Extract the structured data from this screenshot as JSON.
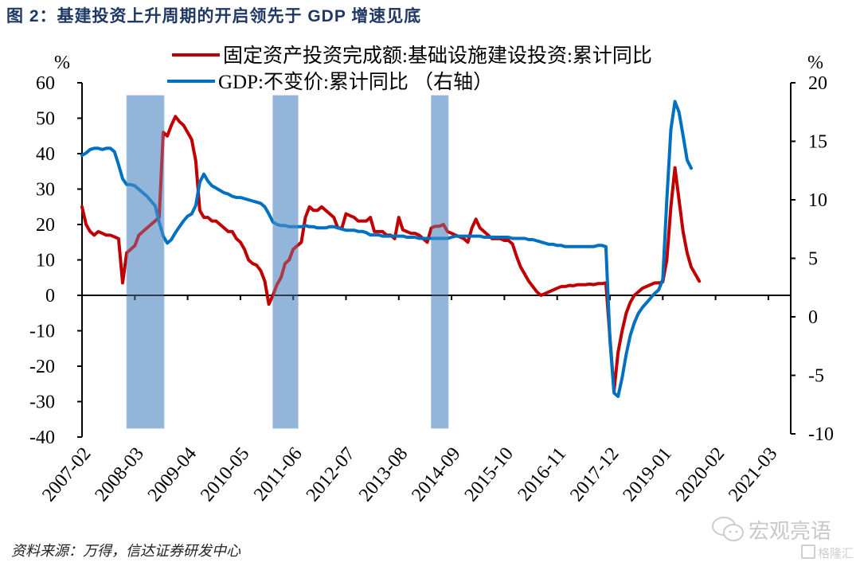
{
  "title": "图 2：基建投资上升周期的开启领先于 GDP 增速见底",
  "source": "资料来源：万得，信达证券研发中心",
  "watermark": {
    "text": "宏观亮语",
    "sub": "格隆汇"
  },
  "colors": {
    "title": "#1f3864",
    "infra": "#c00000",
    "gdp": "#0070c0",
    "shade": "#7fa7d2"
  },
  "chart_data": {
    "type": "line",
    "title": "基建投资上升周期的开启领先于 GDP 增速见底",
    "x_unit": "months since 2007-02",
    "x_tick_labels": [
      "2007-02",
      "2008-03",
      "2009-04",
      "2010-05",
      "2011-06",
      "2012-07",
      "2013-08",
      "2014-09",
      "2015-10",
      "2016-11",
      "2017-12",
      "2019-01",
      "2020-02",
      "2021-03"
    ],
    "x_tick_step": 13,
    "xlim": [
      0,
      172
    ],
    "left_axis": {
      "label": "%",
      "ylim": [
        -40,
        60
      ],
      "ticks": [
        60,
        50,
        40,
        30,
        20,
        10,
        0,
        -10,
        -20,
        -30,
        -40
      ]
    },
    "right_axis": {
      "label": "%",
      "ylim": [
        -10,
        20
      ],
      "ticks": [
        20,
        15,
        10,
        5,
        0,
        -5,
        -10
      ]
    },
    "legend": {
      "position": "top",
      "entries": [
        "固定资产投资完成额:基础设施建设投资:累计同比",
        "GDP:不变价:累计同比 （右轴）"
      ]
    },
    "shaded_periods": [
      {
        "start": 11,
        "end": 20
      },
      {
        "start": 47,
        "end": 53
      },
      {
        "start": 86,
        "end": 90
      }
    ],
    "series": [
      {
        "name": "固定资产投资完成额:基础设施建设投资:累计同比",
        "axis": "left",
        "points": [
          [
            0,
            25
          ],
          [
            1,
            20
          ],
          [
            2,
            18
          ],
          [
            3,
            17
          ],
          [
            4,
            18
          ],
          [
            5,
            17.5
          ],
          [
            6,
            17
          ],
          [
            7,
            17
          ],
          [
            8,
            16.5
          ],
          [
            9,
            16
          ],
          [
            10,
            3.5
          ],
          [
            11,
            12
          ],
          [
            12,
            13
          ],
          [
            13,
            14
          ],
          [
            14,
            17
          ],
          [
            15,
            18
          ],
          [
            16,
            19
          ],
          [
            17,
            20
          ],
          [
            18,
            21
          ],
          [
            19,
            22
          ],
          [
            20,
            46
          ],
          [
            21,
            45
          ],
          [
            22,
            48
          ],
          [
            23,
            50.5
          ],
          [
            24,
            49
          ],
          [
            25,
            48
          ],
          [
            26,
            46
          ],
          [
            27,
            44
          ],
          [
            28,
            38
          ],
          [
            29,
            24
          ],
          [
            30,
            22
          ],
          [
            31,
            22
          ],
          [
            32,
            21
          ],
          [
            33,
            21
          ],
          [
            34,
            20
          ],
          [
            35,
            19
          ],
          [
            36,
            18
          ],
          [
            37,
            18
          ],
          [
            38,
            16
          ],
          [
            39,
            15
          ],
          [
            40,
            13
          ],
          [
            41,
            10
          ],
          [
            42,
            9
          ],
          [
            43,
            8.5
          ],
          [
            44,
            7
          ],
          [
            45,
            4
          ],
          [
            46,
            -2.5
          ],
          [
            47,
            0
          ],
          [
            48,
            3
          ],
          [
            49,
            5
          ],
          [
            50,
            9
          ],
          [
            51,
            10
          ],
          [
            52,
            13
          ],
          [
            53,
            14
          ],
          [
            54,
            15
          ],
          [
            55,
            22
          ],
          [
            56,
            25
          ],
          [
            57,
            24
          ],
          [
            58,
            24
          ],
          [
            59,
            25
          ],
          [
            60,
            24
          ],
          [
            61,
            23
          ],
          [
            62,
            22
          ],
          [
            63,
            19
          ],
          [
            64,
            19
          ],
          [
            65,
            23
          ],
          [
            66,
            22.5
          ],
          [
            67,
            22
          ],
          [
            68,
            21
          ],
          [
            69,
            21
          ],
          [
            70,
            21
          ],
          [
            71,
            22
          ],
          [
            72,
            18
          ],
          [
            73,
            18
          ],
          [
            74,
            18
          ],
          [
            75,
            17
          ],
          [
            76,
            17
          ],
          [
            77,
            16
          ],
          [
            78,
            22
          ],
          [
            79,
            18.5
          ],
          [
            80,
            18
          ],
          [
            81,
            17.5
          ],
          [
            82,
            17.5
          ],
          [
            83,
            17
          ],
          [
            84,
            16
          ],
          [
            85,
            15
          ],
          [
            86,
            19
          ],
          [
            87,
            19.5
          ],
          [
            88,
            19.5
          ],
          [
            89,
            20
          ],
          [
            90,
            18
          ],
          [
            91,
            17.5
          ],
          [
            92,
            17
          ],
          [
            93,
            16.5
          ],
          [
            94,
            16
          ],
          [
            95,
            15
          ],
          [
            96,
            19
          ],
          [
            97,
            21.5
          ],
          [
            98,
            19
          ],
          [
            99,
            18
          ],
          [
            100,
            17
          ],
          [
            101,
            16
          ],
          [
            102,
            16
          ],
          [
            103,
            16
          ],
          [
            104,
            15.5
          ],
          [
            105,
            15.5
          ],
          [
            106,
            14.5
          ],
          [
            107,
            11
          ],
          [
            108,
            8
          ],
          [
            109,
            6
          ],
          [
            110,
            4
          ],
          [
            111,
            2.5
          ],
          [
            112,
            1
          ],
          [
            113,
            0
          ],
          [
            114,
            0.5
          ],
          [
            115,
            1
          ],
          [
            116,
            1.5
          ],
          [
            117,
            2
          ],
          [
            118,
            2.5
          ],
          [
            119,
            2.5
          ],
          [
            120,
            2.8
          ],
          [
            121,
            2.7
          ],
          [
            122,
            3
          ],
          [
            123,
            3
          ],
          [
            124,
            3
          ],
          [
            125,
            3.2
          ],
          [
            126,
            3
          ],
          [
            127,
            3.3
          ],
          [
            128,
            3.3
          ],
          [
            129,
            3.5
          ],
          [
            130,
            -12
          ],
          [
            131,
            -27
          ],
          [
            132,
            -16
          ],
          [
            133,
            -10
          ],
          [
            134,
            -5
          ],
          [
            135,
            -2
          ],
          [
            136,
            0
          ],
          [
            137,
            1
          ],
          [
            138,
            2
          ],
          [
            139,
            2.5
          ],
          [
            140,
            3
          ],
          [
            141,
            3.5
          ],
          [
            142,
            3.5
          ],
          [
            143,
            3.8
          ],
          [
            144,
            10
          ],
          [
            145,
            25
          ],
          [
            146,
            36
          ],
          [
            147,
            27
          ],
          [
            148,
            18
          ],
          [
            149,
            12
          ],
          [
            150,
            8
          ],
          [
            151,
            6
          ],
          [
            152,
            4
          ]
        ]
      },
      {
        "name": "GDP:不变价:累计同比 （右轴）",
        "axis": "right",
        "points": [
          [
            0,
            13.8
          ],
          [
            1,
            14
          ],
          [
            2,
            14.3
          ],
          [
            3,
            14.4
          ],
          [
            4,
            14.4
          ],
          [
            5,
            14.3
          ],
          [
            6,
            14.4
          ],
          [
            7,
            14.4
          ],
          [
            8,
            14.1
          ],
          [
            9,
            13
          ],
          [
            10,
            11.8
          ],
          [
            11,
            11.3
          ],
          [
            12,
            11.3
          ],
          [
            13,
            11.2
          ],
          [
            14,
            10.9
          ],
          [
            15,
            10.6
          ],
          [
            16,
            10.3
          ],
          [
            17,
            9.9
          ],
          [
            18,
            9.5
          ],
          [
            19,
            8.1
          ],
          [
            20,
            6.9
          ],
          [
            21,
            6.3
          ],
          [
            22,
            6.6
          ],
          [
            23,
            7.2
          ],
          [
            24,
            7.7
          ],
          [
            25,
            8.2
          ],
          [
            26,
            8.6
          ],
          [
            27,
            8.8
          ],
          [
            28,
            9.5
          ],
          [
            29,
            11.5
          ],
          [
            30,
            12.2
          ],
          [
            31,
            11.6
          ],
          [
            32,
            11.2
          ],
          [
            33,
            11
          ],
          [
            34,
            10.8
          ],
          [
            35,
            10.6
          ],
          [
            36,
            10.5
          ],
          [
            37,
            10.3
          ],
          [
            38,
            10.2
          ],
          [
            39,
            10.2
          ],
          [
            40,
            10.1
          ],
          [
            41,
            10
          ],
          [
            42,
            9.9
          ],
          [
            43,
            9.8
          ],
          [
            44,
            9.7
          ],
          [
            45,
            9.4
          ],
          [
            46,
            8.8
          ],
          [
            47,
            8.1
          ],
          [
            48,
            7.9
          ],
          [
            49,
            7.8
          ],
          [
            50,
            7.8
          ],
          [
            51,
            7.7
          ],
          [
            52,
            7.7
          ],
          [
            53,
            7.7
          ],
          [
            54,
            7.7
          ],
          [
            55,
            7.8
          ],
          [
            56,
            7.7
          ],
          [
            57,
            7.7
          ],
          [
            58,
            7.6
          ],
          [
            59,
            7.6
          ],
          [
            60,
            7.6
          ],
          [
            61,
            7.7
          ],
          [
            62,
            7.7
          ],
          [
            63,
            7.6
          ],
          [
            64,
            7.5
          ],
          [
            65,
            7.4
          ],
          [
            66,
            7.4
          ],
          [
            67,
            7.4
          ],
          [
            68,
            7.3
          ],
          [
            69,
            7.3
          ],
          [
            70,
            7.2
          ],
          [
            71,
            7
          ],
          [
            72,
            7
          ],
          [
            73,
            7
          ],
          [
            74,
            6.9
          ],
          [
            75,
            6.9
          ],
          [
            76,
            6.9
          ],
          [
            77,
            6.9
          ],
          [
            78,
            6.9
          ],
          [
            79,
            6.9
          ],
          [
            80,
            6.8
          ],
          [
            81,
            6.8
          ],
          [
            82,
            6.8
          ],
          [
            83,
            6.7
          ],
          [
            84,
            6.7
          ],
          [
            85,
            6.7
          ],
          [
            86,
            6.7
          ],
          [
            87,
            6.7
          ],
          [
            88,
            6.7
          ],
          [
            89,
            6.7
          ],
          [
            90,
            6.7
          ],
          [
            91,
            6.8
          ],
          [
            92,
            6.9
          ],
          [
            93,
            6.9
          ],
          [
            94,
            6.9
          ],
          [
            95,
            6.9
          ],
          [
            96,
            6.9
          ],
          [
            97,
            6.9
          ],
          [
            98,
            6.9
          ],
          [
            99,
            6.8
          ],
          [
            100,
            6.8
          ],
          [
            101,
            6.8
          ],
          [
            102,
            6.8
          ],
          [
            103,
            6.8
          ],
          [
            104,
            6.8
          ],
          [
            105,
            6.8
          ],
          [
            106,
            6.7
          ],
          [
            107,
            6.7
          ],
          [
            108,
            6.7
          ],
          [
            109,
            6.7
          ],
          [
            110,
            6.6
          ],
          [
            111,
            6.6
          ],
          [
            112,
            6.5
          ],
          [
            113,
            6.4
          ],
          [
            114,
            6.3
          ],
          [
            115,
            6.2
          ],
          [
            116,
            6.2
          ],
          [
            117,
            6.1
          ],
          [
            118,
            6.1
          ],
          [
            119,
            6.0
          ],
          [
            120,
            6.0
          ],
          [
            121,
            6.0
          ],
          [
            122,
            6.0
          ],
          [
            123,
            6.0
          ],
          [
            124,
            6.0
          ],
          [
            125,
            6.0
          ],
          [
            126,
            6.0
          ],
          [
            127,
            6.1
          ],
          [
            128,
            6.1
          ],
          [
            129,
            6.0
          ],
          [
            130,
            -2
          ],
          [
            131,
            -6.5
          ],
          [
            132,
            -6.8
          ],
          [
            133,
            -5.2
          ],
          [
            134,
            -3.2
          ],
          [
            135,
            -1.6
          ],
          [
            136,
            -0.5
          ],
          [
            137,
            0.3
          ],
          [
            138,
            0.8
          ],
          [
            139,
            1.2
          ],
          [
            140,
            1.6
          ],
          [
            141,
            2.0
          ],
          [
            142,
            2.3
          ],
          [
            143,
            3.2
          ],
          [
            144,
            10
          ],
          [
            145,
            16
          ],
          [
            146,
            18.4
          ],
          [
            147,
            17.5
          ],
          [
            148,
            15.5
          ],
          [
            149,
            13.4
          ],
          [
            150,
            12.7
          ]
        ]
      }
    ]
  }
}
